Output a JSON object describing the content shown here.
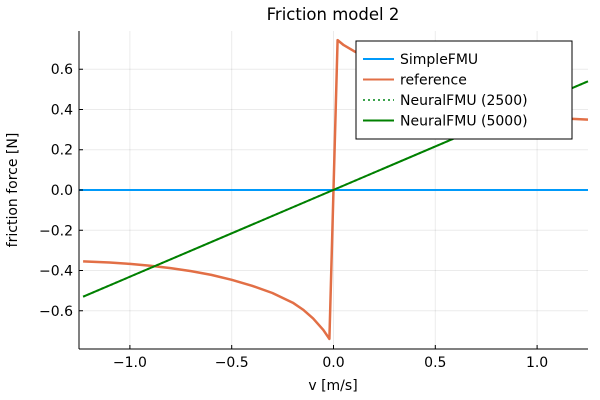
{
  "chart_data": {
    "type": "line",
    "title": "Friction model 2",
    "xlabel": "v [m/s]",
    "ylabel": "friction force [N]",
    "xlim": [
      -1.25,
      1.25
    ],
    "ylim": [
      -0.79,
      0.79
    ],
    "xticks": [
      -1.0,
      -0.5,
      0.0,
      0.5,
      1.0
    ],
    "xtick_labels": [
      "−1.0",
      "−0.5",
      "0.0",
      "0.5",
      "1.0"
    ],
    "yticks": [
      -0.6,
      -0.4,
      -0.2,
      0.0,
      0.2,
      0.4,
      0.6
    ],
    "ytick_labels": [
      "−0.6",
      "−0.4",
      "−0.2",
      "0.0",
      "0.2",
      "0.4",
      "0.6"
    ],
    "grid": true,
    "legend_position": "top-right",
    "series": [
      {
        "name": "SimpleFMU",
        "color": "#009AFA",
        "dash": "solid",
        "width": 2,
        "x": [
          -1.25,
          1.25
        ],
        "y": [
          0.0,
          0.0
        ]
      },
      {
        "name": "reference",
        "color": "#E26F46",
        "dash": "solid",
        "width": 2.5,
        "x": [
          -1.23,
          -1.1,
          -1.0,
          -0.9,
          -0.8,
          -0.7,
          -0.6,
          -0.5,
          -0.4,
          -0.3,
          -0.2,
          -0.15,
          -0.1,
          -0.05,
          -0.02,
          0.02,
          0.05,
          0.1,
          0.2,
          0.3,
          0.4,
          0.5,
          0.6,
          0.7,
          0.8,
          0.9,
          1.0,
          1.1,
          1.25
        ],
        "y": [
          -0.355,
          -0.36,
          -0.367,
          -0.376,
          -0.388,
          -0.403,
          -0.422,
          -0.446,
          -0.476,
          -0.512,
          -0.56,
          -0.594,
          -0.638,
          -0.695,
          -0.74,
          0.745,
          0.72,
          0.69,
          0.64,
          0.59,
          0.545,
          0.5,
          0.46,
          0.425,
          0.398,
          0.378,
          0.365,
          0.357,
          0.35
        ]
      },
      {
        "name": "NeuralFMU (2500)",
        "color": "#3DA44E",
        "dash": "dotted",
        "width": 2,
        "x": [
          -1.23,
          1.25
        ],
        "y": [
          -0.53,
          0.54
        ]
      },
      {
        "name": "NeuralFMU (5000)",
        "color": "#008000",
        "dash": "solid",
        "width": 2,
        "x": [
          -1.23,
          1.25
        ],
        "y": [
          -0.53,
          0.54
        ]
      }
    ]
  }
}
